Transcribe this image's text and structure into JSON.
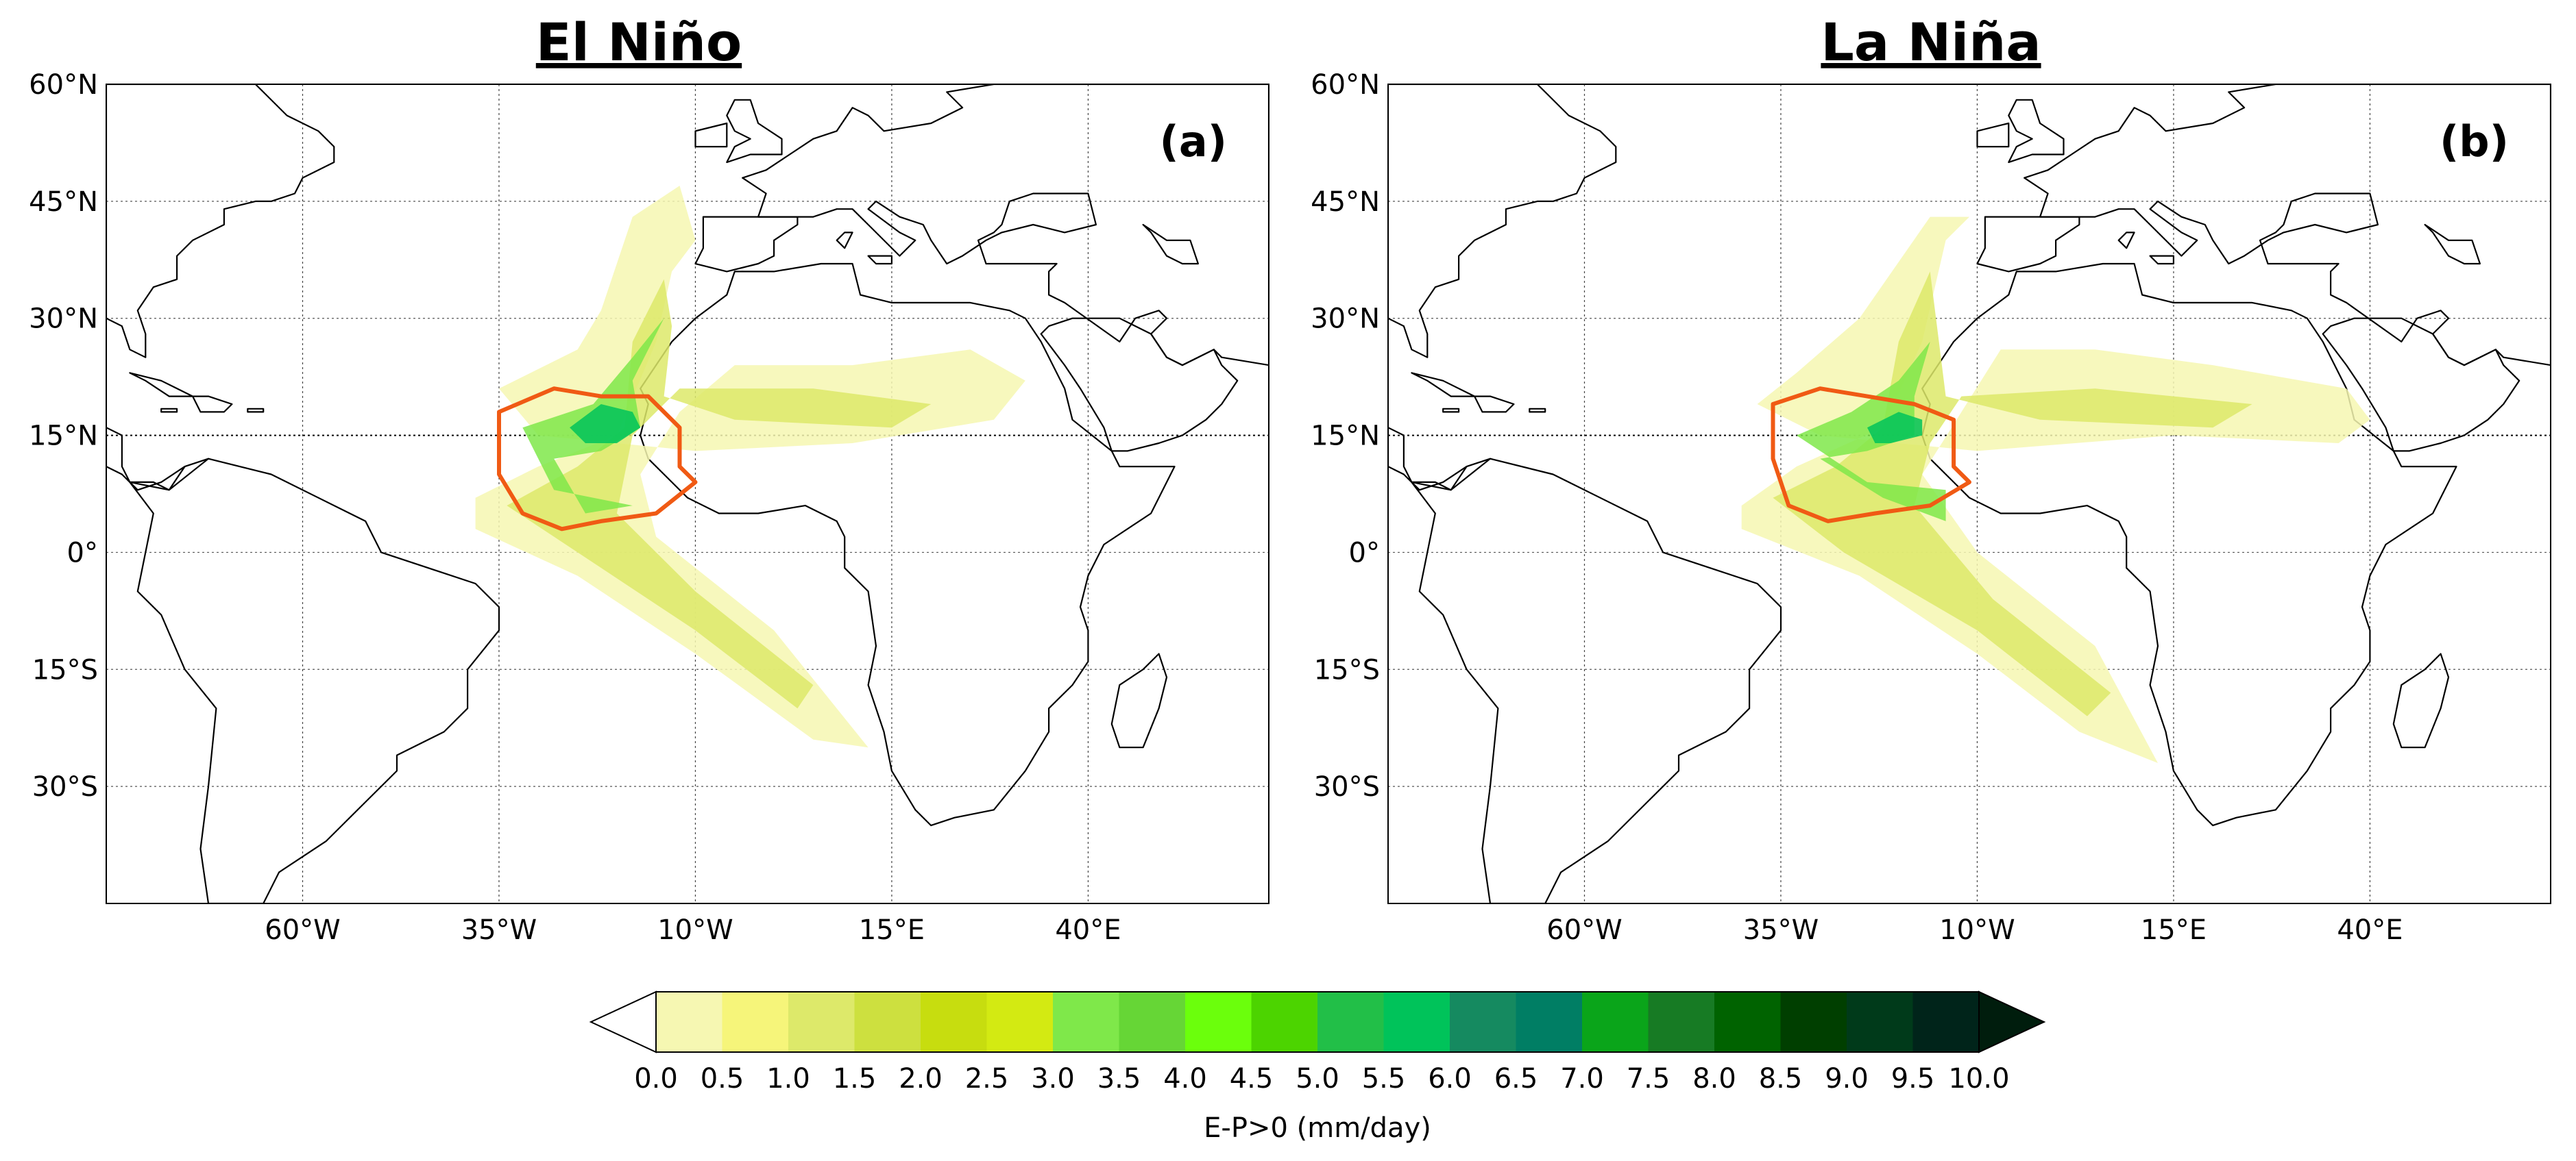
{
  "panels": [
    {
      "title": "El Niño",
      "label": "(a)"
    },
    {
      "title": "La Niña",
      "label": "(b)"
    }
  ],
  "lat_ticks": [
    "60°N",
    "45°N",
    "30°N",
    "15°N",
    "0°",
    "15°S",
    "30°S"
  ],
  "lon_ticks": [
    "60°W",
    "35°W",
    "10°W",
    "15°E",
    "40°E"
  ],
  "colorbar": {
    "label": "E-P>0 (mm/day)",
    "ticks": [
      "0.0",
      "0.5",
      "1.0",
      "1.5",
      "2.0",
      "2.5",
      "3.0",
      "3.5",
      "4.0",
      "4.5",
      "5.0",
      "5.5",
      "6.0",
      "6.5",
      "7.0",
      "7.5",
      "8.0",
      "8.5",
      "9.0",
      "9.5",
      "10.0"
    ],
    "colors": [
      "#f6f7b2",
      "#f6f57a",
      "#dde96a",
      "#cde03f",
      "#c7dd0f",
      "#d3ea12",
      "#7fe84a",
      "#66d636",
      "#6bff0c",
      "#4cd400",
      "#22bf48",
      "#00c35a",
      "#158a60",
      "#007e64",
      "#0aa51a",
      "#177b24",
      "#006300",
      "#003f00",
      "#003a1a",
      "#00241a"
    ],
    "under_color": "#ffffff",
    "over_color": "#001d0d"
  },
  "chart_data": {
    "type": "heatmap",
    "variable": "E-P>0 (mm/day)",
    "lon_range": [
      -85,
      63
    ],
    "lat_range": [
      -45,
      60
    ],
    "maps": [
      {
        "panel": "El Niño",
        "fields": [
          {
            "level": 0.5,
            "outline": [
              [
                -38,
                7
              ],
              [
                -30,
                11
              ],
              [
                -20,
                15
              ],
              [
                -15,
                27
              ],
              [
                -13,
                36
              ],
              [
                -10,
                40
              ],
              [
                -12,
                47
              ],
              [
                -18,
                43
              ],
              [
                -22,
                31
              ],
              [
                -25,
                26
              ],
              [
                -35,
                21
              ],
              [
                -30,
                15
              ],
              [
                -10,
                13
              ],
              [
                10,
                14
              ],
              [
                28,
                17
              ],
              [
                32,
                22
              ],
              [
                25,
                26
              ],
              [
                10,
                24
              ],
              [
                -5,
                24
              ],
              [
                -12,
                18
              ],
              [
                -17,
                10
              ],
              [
                -15,
                2
              ],
              [
                0,
                -10
              ],
              [
                8,
                -20
              ],
              [
                12,
                -25
              ],
              [
                5,
                -24
              ],
              [
                -10,
                -13
              ],
              [
                -25,
                -3
              ],
              [
                -38,
                3
              ]
            ]
          },
          {
            "level": 1.5,
            "outline": [
              [
                -34,
                6
              ],
              [
                -25,
                11
              ],
              [
                -19,
                16
              ],
              [
                -18,
                27
              ],
              [
                -14,
                35
              ],
              [
                -13,
                29
              ],
              [
                -14,
                20
              ],
              [
                -5,
                17
              ],
              [
                15,
                16
              ],
              [
                20,
                19
              ],
              [
                5,
                21
              ],
              [
                -12,
                21
              ],
              [
                -18,
                15
              ],
              [
                -20,
                5
              ],
              [
                -10,
                -5
              ],
              [
                5,
                -17
              ],
              [
                3,
                -20
              ],
              [
                -10,
                -10
              ],
              [
                -25,
                0
              ]
            ]
          },
          {
            "level": 3.5,
            "outline": [
              [
                -32,
                16
              ],
              [
                -23,
                19
              ],
              [
                -18,
                25
              ],
              [
                -14,
                30
              ],
              [
                -16,
                26
              ],
              [
                -18,
                22
              ],
              [
                -17,
                16
              ],
              [
                -22,
                13
              ],
              [
                -28,
                12
              ],
              [
                -24,
                5
              ],
              [
                -18,
                6
              ],
              [
                -28,
                8
              ]
            ]
          },
          {
            "level": 6.0,
            "outline": [
              [
                -26,
                16
              ],
              [
                -22,
                19
              ],
              [
                -18,
                18
              ],
              [
                -17,
                16
              ],
              [
                -20,
                14
              ],
              [
                -24,
                14
              ]
            ]
          }
        ],
        "source_region_outline": [
          [
            -35,
            18
          ],
          [
            -28,
            21
          ],
          [
            -22,
            20
          ],
          [
            -16,
            20
          ],
          [
            -12,
            16
          ],
          [
            -12,
            11
          ],
          [
            -10,
            9
          ],
          [
            -15,
            5
          ],
          [
            -22,
            4
          ],
          [
            -27,
            3
          ],
          [
            -32,
            5
          ],
          [
            -35,
            10
          ]
        ]
      },
      {
        "panel": "La Niña",
        "fields": [
          {
            "level": 0.5,
            "outline": [
              [
                -40,
                6
              ],
              [
                -33,
                11
              ],
              [
                -22,
                16
              ],
              [
                -17,
                27
              ],
              [
                -14,
                40
              ],
              [
                -11,
                43
              ],
              [
                -16,
                43
              ],
              [
                -25,
                30
              ],
              [
                -33,
                23
              ],
              [
                -38,
                19
              ],
              [
                -30,
                15
              ],
              [
                -10,
                13
              ],
              [
                15,
                15
              ],
              [
                36,
                14
              ],
              [
                40,
                17
              ],
              [
                37,
                21
              ],
              [
                20,
                24
              ],
              [
                5,
                26
              ],
              [
                -7,
                26
              ],
              [
                -12,
                18
              ],
              [
                -17,
                10
              ],
              [
                -10,
                0
              ],
              [
                5,
                -12
              ],
              [
                13,
                -27
              ],
              [
                3,
                -23
              ],
              [
                -10,
                -13
              ],
              [
                -25,
                -3
              ],
              [
                -40,
                3
              ]
            ]
          },
          {
            "level": 1.5,
            "outline": [
              [
                -36,
                7
              ],
              [
                -28,
                11
              ],
              [
                -22,
                16
              ],
              [
                -20,
                27
              ],
              [
                -16,
                36
              ],
              [
                -15,
                28
              ],
              [
                -14,
                20
              ],
              [
                -2,
                17
              ],
              [
                20,
                16
              ],
              [
                25,
                19
              ],
              [
                5,
                21
              ],
              [
                -12,
                20
              ],
              [
                -16,
                14
              ],
              [
                -18,
                6
              ],
              [
                -8,
                -6
              ],
              [
                7,
                -18
              ],
              [
                4,
                -21
              ],
              [
                -10,
                -10
              ],
              [
                -27,
                0
              ]
            ]
          },
          {
            "level": 3.5,
            "outline": [
              [
                -33,
                15
              ],
              [
                -26,
                18
              ],
              [
                -20,
                22
              ],
              [
                -16,
                27
              ],
              [
                -18,
                20
              ],
              [
                -18,
                15
              ],
              [
                -24,
                13
              ],
              [
                -30,
                12
              ],
              [
                -22,
                7
              ],
              [
                -14,
                4
              ],
              [
                -14,
                8
              ],
              [
                -24,
                9
              ]
            ]
          },
          {
            "level": 6.0,
            "outline": [
              [
                -24,
                16
              ],
              [
                -20,
                18
              ],
              [
                -17,
                17
              ],
              [
                -17,
                15
              ],
              [
                -21,
                14
              ],
              [
                -23,
                14
              ]
            ]
          }
        ],
        "source_region_outline": [
          [
            -36,
            19
          ],
          [
            -30,
            21
          ],
          [
            -24,
            20
          ],
          [
            -18,
            19
          ],
          [
            -13,
            17
          ],
          [
            -13,
            11
          ],
          [
            -11,
            9
          ],
          [
            -16,
            6
          ],
          [
            -23,
            5
          ],
          [
            -29,
            4
          ],
          [
            -34,
            6
          ],
          [
            -36,
            12
          ]
        ]
      }
    ]
  }
}
